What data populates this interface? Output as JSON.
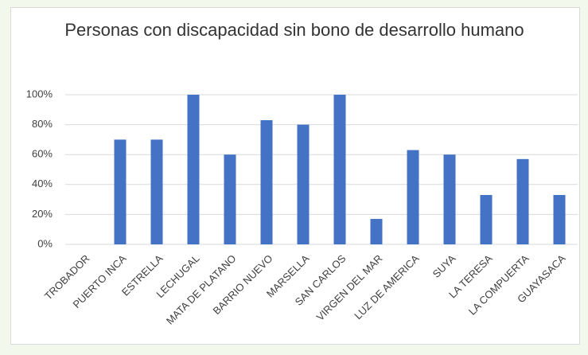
{
  "chart_data": {
    "type": "bar",
    "title": "Personas con discapacidad sin bono de desarrollo humano",
    "categories": [
      "TROBADOR",
      "PUERTO INCA",
      "ESTRELLA",
      "LECHUGAL",
      "MATA DE PLATANO",
      "BARRIO NUEVO",
      "MARSELLA",
      "SAN CARLOS",
      "VIRGEN DEL MAR",
      "LUZ DE AMERICA",
      "SUYA",
      "LA TERESA",
      "LA COMPUERTA",
      "GUAYASACA"
    ],
    "values": [
      0,
      70,
      70,
      100,
      60,
      83,
      80,
      100,
      17,
      63,
      60,
      33,
      57,
      33
    ],
    "color": "#4472c4",
    "ylim": [
      0,
      100
    ],
    "yticks": [
      {
        "value": 0,
        "label": "0%"
      },
      {
        "value": 20,
        "label": "20%"
      },
      {
        "value": 40,
        "label": "40%"
      },
      {
        "value": 60,
        "label": "60%"
      },
      {
        "value": 80,
        "label": "80%"
      },
      {
        "value": 100,
        "label": "100%"
      }
    ],
    "grid": true
  }
}
